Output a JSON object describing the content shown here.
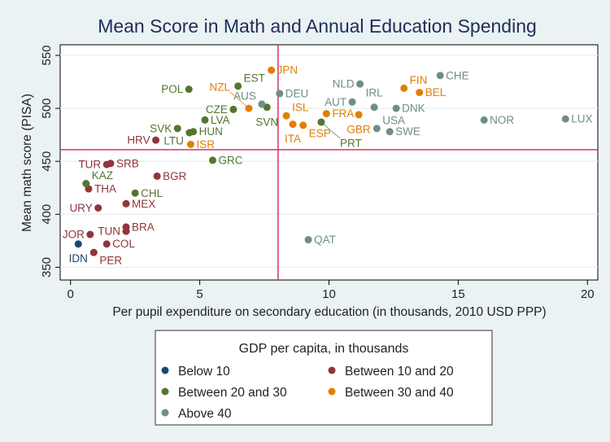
{
  "chart_data": {
    "type": "scatter",
    "title": "Mean Score in Math and Annual Education Spending",
    "xlabel": "Per pupil expenditure on secondary education (in thousands, 2010 USD PPP)",
    "ylabel": "Mean math score (PISA)",
    "xlim": [
      -0.4,
      20.4
    ],
    "ylim": [
      338,
      560
    ],
    "xticks": [
      "0",
      "5",
      "10",
      "15",
      "20"
    ],
    "xtick_values": [
      0,
      5,
      10,
      15,
      20
    ],
    "yticks": [
      "350",
      "400",
      "450",
      "500",
      "550"
    ],
    "ytick_values": [
      350,
      400,
      450,
      500,
      550
    ],
    "grid": true,
    "reference_lines": {
      "x": 8.03,
      "y": 461,
      "color": "#d6336c"
    },
    "legend": {
      "title": "GDP per capita, in thousands",
      "placement": "bottom",
      "entries": [
        {
          "key": "b10",
          "label": "Below 10",
          "color": "#1a476f"
        },
        {
          "key": "b1020",
          "label": "Between 10 and 20",
          "color": "#90353b"
        },
        {
          "key": "b2030",
          "label": "Between 20 and 30",
          "color": "#55752f"
        },
        {
          "key": "b3040",
          "label": "Between 30 and 40",
          "color": "#e37e00"
        },
        {
          "key": "a40",
          "label": "Above 40",
          "color": "#6e8e84"
        }
      ]
    },
    "points": [
      {
        "label": "IDN",
        "x": 0.3,
        "y": 372,
        "group": "b10"
      },
      {
        "label": "TUR",
        "x": 1.4,
        "y": 447,
        "group": "b1020"
      },
      {
        "label": "SRB",
        "x": 1.55,
        "y": 448,
        "group": "b1020"
      },
      {
        "label": "THA",
        "x": 0.7,
        "y": 424,
        "group": "b1020"
      },
      {
        "label": "URY",
        "x": 1.07,
        "y": 406,
        "group": "b1020"
      },
      {
        "label": "MEX",
        "x": 2.15,
        "y": 410,
        "group": "b1020"
      },
      {
        "label": "BRA",
        "x": 2.15,
        "y": 388,
        "group": "b1020"
      },
      {
        "label": "TUN",
        "x": 2.15,
        "y": 384,
        "group": "b1020"
      },
      {
        "label": "JOR",
        "x": 0.76,
        "y": 381,
        "group": "b1020"
      },
      {
        "label": "COL",
        "x": 1.4,
        "y": 372,
        "group": "b1020"
      },
      {
        "label": "PER",
        "x": 0.9,
        "y": 364,
        "group": "b1020"
      },
      {
        "label": "BGR",
        "x": 3.35,
        "y": 436,
        "group": "b1020"
      },
      {
        "label": "HRV",
        "x": 3.3,
        "y": 470,
        "group": "b1020"
      },
      {
        "label": "KAZ",
        "x": 0.6,
        "y": 429,
        "group": "b2030"
      },
      {
        "label": "CHL",
        "x": 2.5,
        "y": 420,
        "group": "b2030"
      },
      {
        "label": "GRC",
        "x": 5.5,
        "y": 451,
        "group": "b2030"
      },
      {
        "label": "SVK",
        "x": 4.14,
        "y": 481,
        "group": "b2030"
      },
      {
        "label": "LTU",
        "x": 4.6,
        "y": 477,
        "group": "b2030"
      },
      {
        "label": "HUN",
        "x": 4.75,
        "y": 478,
        "group": "b2030"
      },
      {
        "label": "LVA",
        "x": 5.2,
        "y": 489,
        "group": "b2030"
      },
      {
        "label": "POL",
        "x": 4.58,
        "y": 518,
        "group": "b2030"
      },
      {
        "label": "EST",
        "x": 6.48,
        "y": 521,
        "group": "b2030"
      },
      {
        "label": "CZE",
        "x": 6.3,
        "y": 499,
        "group": "b2030"
      },
      {
        "label": "SVN",
        "x": 7.6,
        "y": 501,
        "group": "b2030"
      },
      {
        "label": "PRT",
        "x": 9.7,
        "y": 487,
        "group": "b2030"
      },
      {
        "label": "ISR",
        "x": 4.65,
        "y": 466,
        "group": "b3040"
      },
      {
        "label": "NZL",
        "x": 6.9,
        "y": 500,
        "group": "b3040"
      },
      {
        "label": "JPN",
        "x": 7.77,
        "y": 536,
        "group": "b3040"
      },
      {
        "label": "ISL",
        "x": 8.35,
        "y": 493,
        "group": "b3040"
      },
      {
        "label": "ITA",
        "x": 8.6,
        "y": 485,
        "group": "b3040"
      },
      {
        "label": "ESP",
        "x": 9.0,
        "y": 484,
        "group": "b3040"
      },
      {
        "label": "FRA",
        "x": 9.9,
        "y": 495,
        "group": "b3040"
      },
      {
        "label": "GBR",
        "x": 11.15,
        "y": 494,
        "group": "b3040"
      },
      {
        "label": "FIN",
        "x": 12.9,
        "y": 519,
        "group": "b3040"
      },
      {
        "label": "BEL",
        "x": 13.5,
        "y": 515,
        "group": "b3040"
      },
      {
        "label": "AUS",
        "x": 7.4,
        "y": 504,
        "group": "a40"
      },
      {
        "label": "DEU",
        "x": 8.09,
        "y": 514,
        "group": "a40"
      },
      {
        "label": "AUT",
        "x": 10.9,
        "y": 506,
        "group": "a40"
      },
      {
        "label": "NLD",
        "x": 11.2,
        "y": 523,
        "group": "a40"
      },
      {
        "label": "IRL",
        "x": 11.75,
        "y": 501,
        "group": "a40"
      },
      {
        "label": "DNK",
        "x": 12.6,
        "y": 500,
        "group": "a40"
      },
      {
        "label": "USA",
        "x": 11.85,
        "y": 481,
        "group": "a40"
      },
      {
        "label": "SWE",
        "x": 12.35,
        "y": 478,
        "group": "a40"
      },
      {
        "label": "CHE",
        "x": 14.3,
        "y": 531,
        "group": "a40"
      },
      {
        "label": "NOR",
        "x": 16.0,
        "y": 489,
        "group": "a40"
      },
      {
        "label": "LUX",
        "x": 19.15,
        "y": 490,
        "group": "a40"
      },
      {
        "label": "QAT",
        "x": 9.2,
        "y": 376,
        "group": "a40"
      }
    ]
  }
}
